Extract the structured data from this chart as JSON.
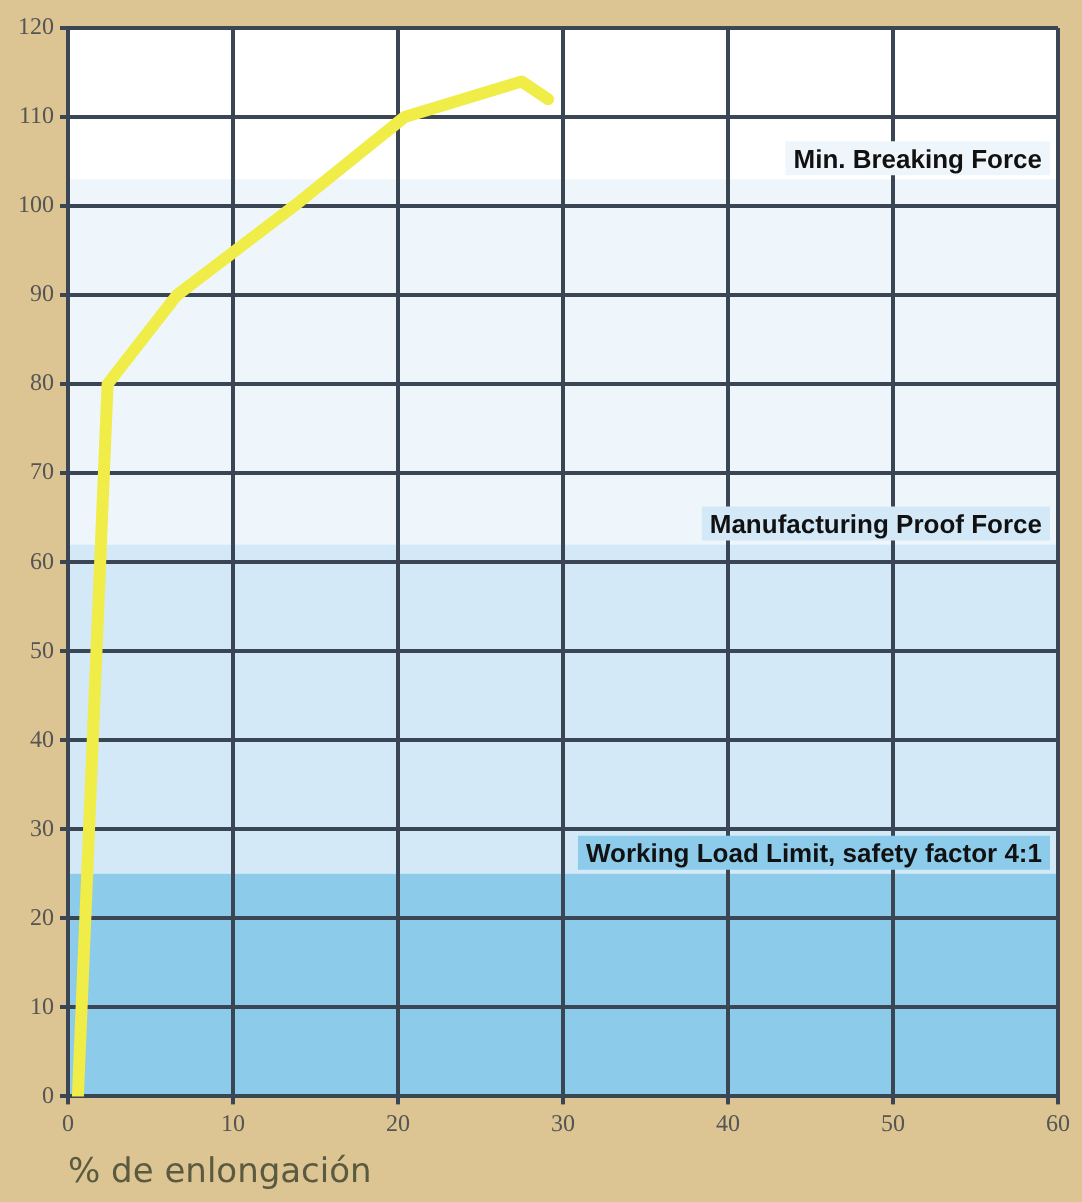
{
  "chart_data": {
    "type": "line",
    "xlabel": "% de enlongación",
    "xlim": [
      0,
      60
    ],
    "xticks": [
      0,
      10,
      20,
      30,
      40,
      50,
      60
    ],
    "ylim": [
      0,
      120
    ],
    "yticks": [
      0,
      10,
      20,
      30,
      40,
      50,
      60,
      70,
      80,
      90,
      100,
      110,
      120
    ],
    "grid": true,
    "series": [
      {
        "color": "#f0ec48",
        "x": [
          0.6,
          2.4,
          6.6,
          13.7,
          20.4,
          27.5,
          29.1
        ],
        "values": [
          0,
          80,
          90,
          100,
          110,
          114,
          112
        ]
      }
    ],
    "bands": [
      {
        "axis": "y",
        "from": 62,
        "to": 103,
        "label": "Min. Breaking Force",
        "color": "#eef6fc"
      },
      {
        "axis": "y",
        "from": 25,
        "to": 62,
        "label": "Manufacturing Proof Force",
        "color": "#d3e9f7"
      },
      {
        "axis": "y",
        "from": 0,
        "to": 25,
        "label": "Working Load Limit, safety factor 4:1",
        "color": "#8ccbea"
      }
    ]
  }
}
